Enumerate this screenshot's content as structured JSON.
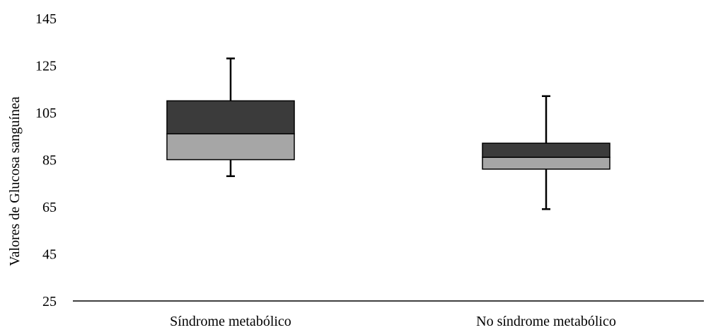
{
  "chart_data": {
    "type": "box",
    "title": "",
    "xlabel": "",
    "ylabel": "Valores de Glucosa sanguínea",
    "ylim": [
      25,
      145
    ],
    "yticks": [
      25,
      45,
      65,
      85,
      105,
      125,
      145
    ],
    "grid": false,
    "categories": [
      "Síndrome metabólico",
      "No síndrome metabólico"
    ],
    "boxes": [
      {
        "category": "Síndrome metabólico",
        "min": 78,
        "q1": 85,
        "median": 96,
        "q3": 110,
        "max": 128
      },
      {
        "category": "No síndrome metabólico",
        "min": 64,
        "q1": 81,
        "median": 86,
        "q3": 92,
        "max": 112
      }
    ],
    "colors": {
      "upper_box": "#3b3b3b",
      "lower_box": "#a6a6a6",
      "outline": "#000000"
    }
  }
}
